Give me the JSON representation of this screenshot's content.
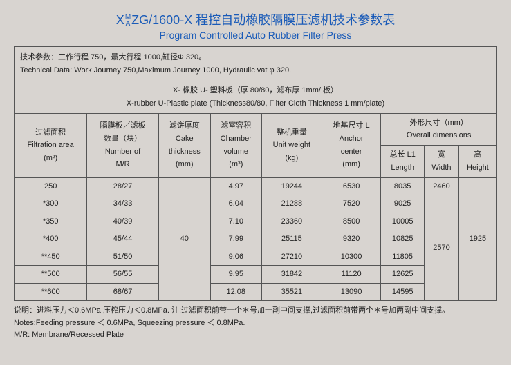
{
  "title_cn": "ZG/1600-X 程控自动橡胶隔膜压滤机技术参数表",
  "title_prefix": "X",
  "title_stack_top": "M",
  "title_stack_bottom": "A",
  "subtitle": "Program Controlled Auto Rubber Filter Press",
  "tech_cn": "技术参数：工作行程 750，最大行程 1000,缸径Φ 320。",
  "tech_en": "Technical Data: Work Journey 750,Maximum Journey 1000, Hydraulic vat φ 320.",
  "plate_cn": "X- 橡胶 U- 塑料板（厚 80/80，滤布厚 1mm/ 板）",
  "plate_en": "X-rubber U-Plastic plate (Thickness80/80, Filter Cloth Thickness 1 mm/plate)",
  "headers": {
    "filtration_cn": "过滤面积",
    "filtration_en": "Filtration area",
    "filtration_unit": "(m²)",
    "mr_cn": "隔膜板／滤板",
    "mr_cn2": "数量（块）",
    "mr_en": "Number of",
    "mr_en2": "M/R",
    "cake_cn": "滤饼厚度",
    "cake_en": "Cake",
    "cake_en2": "thickness",
    "cake_unit": "(mm)",
    "volume_cn": "滤室容积",
    "volume_en": "Chamber",
    "volume_en2": "volume",
    "volume_unit": "(m³)",
    "weight_cn": "整机重量",
    "weight_en": "Unit weight",
    "weight_unit": "(kg)",
    "anchor_cn": "地基尺寸 L",
    "anchor_en": "Anchor",
    "anchor_en2": "center",
    "anchor_unit": "(mm)",
    "overall_cn": "外形尺寸（mm）",
    "overall_en": "Overall dimensions",
    "length_cn": "总长 L1",
    "length_en": "Length",
    "width_cn": "宽",
    "width_en": "Width",
    "height_cn": "高",
    "height_en": "Height"
  },
  "cake_shared": "40",
  "width_top": "2460",
  "width_bottom": "2570",
  "height_shared": "1925",
  "rows": [
    {
      "area": "250",
      "mr": "28/27",
      "vol": "4.97",
      "wt": "19244",
      "anchor": "6530",
      "len": "8035"
    },
    {
      "area": "*300",
      "mr": "34/33",
      "vol": "6.04",
      "wt": "21288",
      "anchor": "7520",
      "len": "9025"
    },
    {
      "area": "*350",
      "mr": "40/39",
      "vol": "7.10",
      "wt": "23360",
      "anchor": "8500",
      "len": "10005"
    },
    {
      "area": "*400",
      "mr": "45/44",
      "vol": "7.99",
      "wt": "25115",
      "anchor": "9320",
      "len": "10825"
    },
    {
      "area": "**450",
      "mr": "51/50",
      "vol": "9.06",
      "wt": "27210",
      "anchor": "10300",
      "len": "11805"
    },
    {
      "area": "**500",
      "mr": "56/55",
      "vol": "9.95",
      "wt": "31842",
      "anchor": "11120",
      "len": "12625"
    },
    {
      "area": "**600",
      "mr": "68/67",
      "vol": "12.08",
      "wt": "35521",
      "anchor": "13090",
      "len": "14595"
    }
  ],
  "notes_cn": "说明：进料压力＜0.6MPa 压榨压力＜0.8MPa. 注:过滤面积前带一个＊号加一副中间支撑,过滤面积前带两个＊号加两副中间支撑。",
  "notes_en": "Notes:Feeding pressure ＜ 0.6MPa, Squeezing pressure ＜ 0.8MPa.",
  "notes_mr": "M/R: Membrane/Recessed Plate"
}
